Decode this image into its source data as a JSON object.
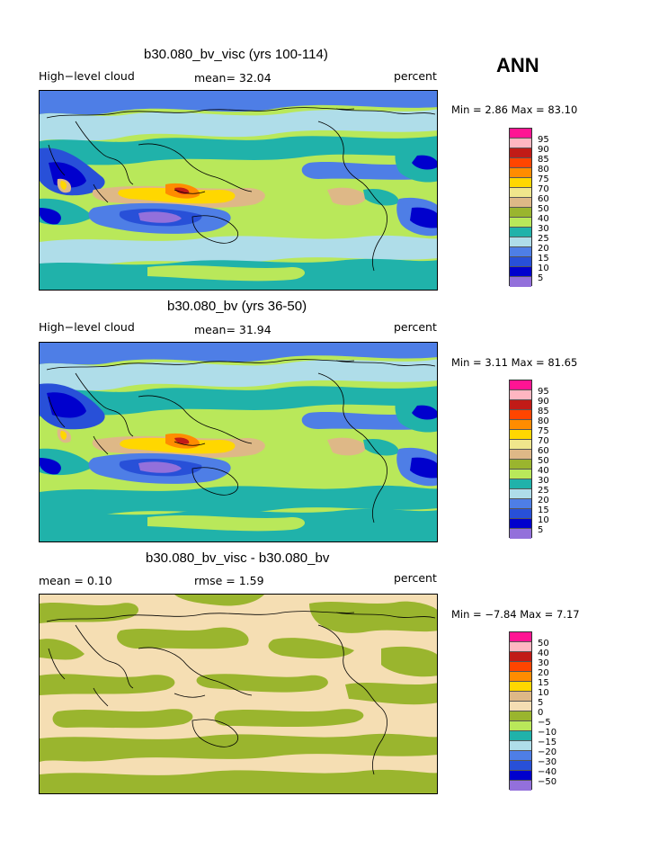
{
  "season": "ANN",
  "panels": [
    {
      "title": "b30.080_bv_visc (yrs 100-114)",
      "left_label": "High−level cloud",
      "center_label": "mean=  32.04",
      "right_label": "percent",
      "stats": "Min =   2.86 Max =  83.10",
      "levels": [
        "95",
        "90",
        "85",
        "80",
        "75",
        "70",
        "60",
        "50",
        "40",
        "30",
        "25",
        "20",
        "15",
        "10",
        "5"
      ]
    },
    {
      "title": "b30.080_bv (yrs 36-50)",
      "left_label": "High−level cloud",
      "center_label": "mean=  31.94",
      "right_label": "percent",
      "stats": "Min =   3.11 Max =  81.65",
      "levels": [
        "95",
        "90",
        "85",
        "80",
        "75",
        "70",
        "60",
        "50",
        "40",
        "30",
        "25",
        "20",
        "15",
        "10",
        "5"
      ]
    },
    {
      "title": "b30.080_bv_visc - b30.080_bv",
      "left_label": "mean =    0.10",
      "center_label": "rmse =    1.59",
      "right_label": "percent",
      "stats": "Min =  −7.84 Max =   7.17",
      "levels": [
        "50",
        "40",
        "30",
        "20",
        "15",
        "10",
        "5",
        "0",
        "−5",
        "−10",
        "−15",
        "−20",
        "−30",
        "−40",
        "−50"
      ]
    }
  ],
  "colors": {
    "palette": [
      "#ff1493",
      "#ffb6c1",
      "#c11b17",
      "#ff4500",
      "#ff8c00",
      "#ffd700",
      "#f0e68c",
      "#deb887",
      "#9ab52e",
      "#b9e85a",
      "#20b2aa",
      "#afdde9",
      "#4e7ee6",
      "#2850d8",
      "#0000cd",
      "#9370db"
    ],
    "ocean_cool": "#afdde9",
    "diff_pos": "#f5deb3",
    "diff_neg": "#9ab52e"
  }
}
